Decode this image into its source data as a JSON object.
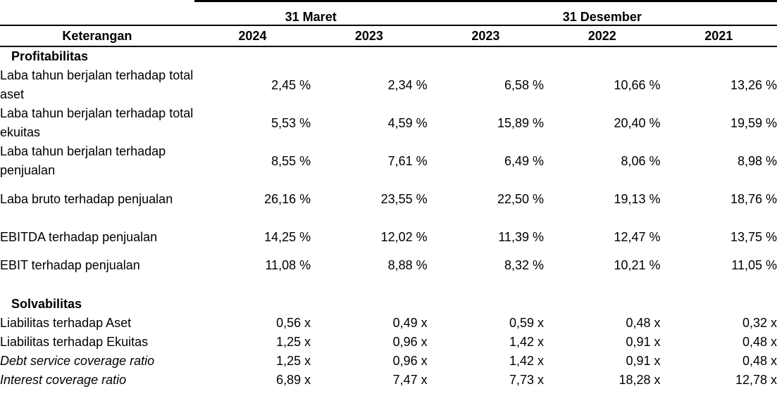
{
  "header": {
    "group_maret": "31 Maret",
    "group_desember": "31 Desember",
    "label_col": "Keterangan",
    "years": [
      "2024",
      "2023",
      "2023",
      "2022",
      "2021"
    ]
  },
  "sections": {
    "profitabilitas": {
      "title": "Profitabilitas",
      "rows": [
        {
          "label": "Laba tahun berjalan terhadap total aset",
          "values": [
            "2,45 %",
            "2,34 %",
            "6,58 %",
            "10,66 %",
            "13,26 %"
          ]
        },
        {
          "label": "Laba tahun berjalan terhadap total ekuitas",
          "values": [
            "5,53 %",
            "4,59 %",
            "15,89 %",
            "20,40 %",
            "19,59 %"
          ]
        },
        {
          "label": "Laba tahun berjalan terhadap penjualan",
          "values": [
            "8,55 %",
            "7,61 %",
            "6,49 %",
            "8,06 %",
            "8,98 %"
          ]
        },
        {
          "label": "Laba bruto terhadap penjualan",
          "values": [
            "26,16 %",
            "23,55 %",
            "22,50 %",
            "19,13 %",
            "18,76 %"
          ]
        },
        {
          "label": "EBITDA terhadap penjualan",
          "values": [
            "14,25 %",
            "12,02 %",
            "11,39 %",
            "12,47 %",
            "13,75 %"
          ]
        },
        {
          "label": "EBIT terhadap penjualan",
          "values": [
            "11,08 %",
            "8,88 %",
            "8,32 %",
            "10,21 %",
            "11,05 %"
          ]
        }
      ]
    },
    "solvabilitas": {
      "title": "Solvabilitas",
      "rows": [
        {
          "label": "Liabilitas terhadap Aset",
          "values": [
            "0,56 x",
            "0,49 x",
            "0,59 x",
            "0,48 x",
            "0,32 x"
          ]
        },
        {
          "label": "Liabilitas terhadap Ekuitas",
          "values": [
            "1,25 x",
            "0,96 x",
            "1,42 x",
            "0,91 x",
            "0,48 x"
          ]
        },
        {
          "label": "Debt service coverage ratio",
          "values": [
            "1,25 x",
            "0,96 x",
            "1,42 x",
            "0,91 x",
            "0,48 x"
          ]
        },
        {
          "label": "Interest coverage ratio",
          "values": [
            "6,89 x",
            "7,47 x",
            "7,73 x",
            "18,28 x",
            "12,78 x"
          ]
        }
      ]
    }
  }
}
